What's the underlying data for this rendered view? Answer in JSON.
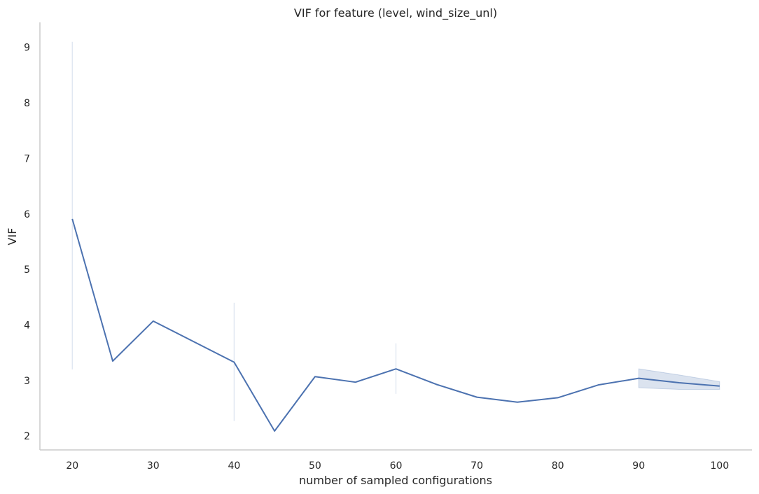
{
  "chart_data": {
    "type": "line",
    "title": "VIF for feature (level, wind_size_unl)",
    "xlabel": "number of sampled configurations",
    "ylabel": "VIF",
    "xlim": [
      16,
      104
    ],
    "ylim": [
      1.75,
      9.45
    ],
    "x_ticks": [
      20,
      30,
      40,
      50,
      60,
      70,
      80,
      90,
      100
    ],
    "y_ticks": [
      2,
      3,
      4,
      5,
      6,
      7,
      8,
      9
    ],
    "grid": false,
    "series": [
      {
        "x": [
          20,
          25,
          30,
          35,
          40,
          45,
          50,
          55,
          60,
          65,
          70,
          75,
          80,
          85,
          90,
          95,
          100
        ],
        "values": [
          5.91,
          3.35,
          4.07,
          3.7,
          3.33,
          2.09,
          3.07,
          2.97,
          3.21,
          2.93,
          2.7,
          2.61,
          2.69,
          2.92,
          3.04,
          2.96,
          2.9
        ],
        "ci_lower": [
          3.2,
          3.35,
          4.07,
          3.7,
          2.27,
          2.09,
          3.07,
          2.97,
          2.76,
          2.93,
          2.7,
          2.61,
          2.69,
          2.92,
          2.87,
          2.84,
          2.84
        ],
        "ci_upper": [
          9.1,
          3.35,
          4.07,
          3.7,
          4.4,
          2.09,
          3.07,
          2.97,
          3.67,
          2.93,
          2.7,
          2.61,
          2.69,
          2.92,
          3.21,
          3.1,
          2.98
        ],
        "color": "#4c72b0"
      }
    ]
  }
}
